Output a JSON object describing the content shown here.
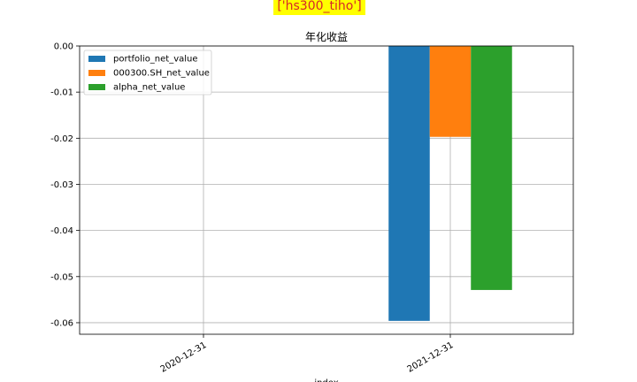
{
  "page_title": "['hs300_tiho']",
  "chart_data": {
    "type": "bar",
    "title": "年化收益",
    "xlabel": "index",
    "ylabel": "",
    "categories": [
      "2020-12-31",
      "2021-12-31"
    ],
    "series": [
      {
        "name": "portfolio_net_value",
        "color": "#1f77b4",
        "values": [
          0,
          -0.0596
        ]
      },
      {
        "name": "000300.SH_net_value",
        "color": "#ff7f0e",
        "values": [
          0,
          -0.0197
        ]
      },
      {
        "name": "alpha_net_value",
        "color": "#2ca02c",
        "values": [
          0,
          -0.0529
        ]
      }
    ],
    "ylim": [
      -0.0625,
      0.0
    ],
    "yticks": [
      "0.00",
      "-0.01",
      "-0.02",
      "-0.03",
      "-0.04",
      "-0.05",
      "-0.06"
    ],
    "ytick_values": [
      0.0,
      -0.01,
      -0.02,
      -0.03,
      -0.04,
      -0.05,
      -0.06
    ],
    "grid": true,
    "legend_position": "upper-left"
  }
}
